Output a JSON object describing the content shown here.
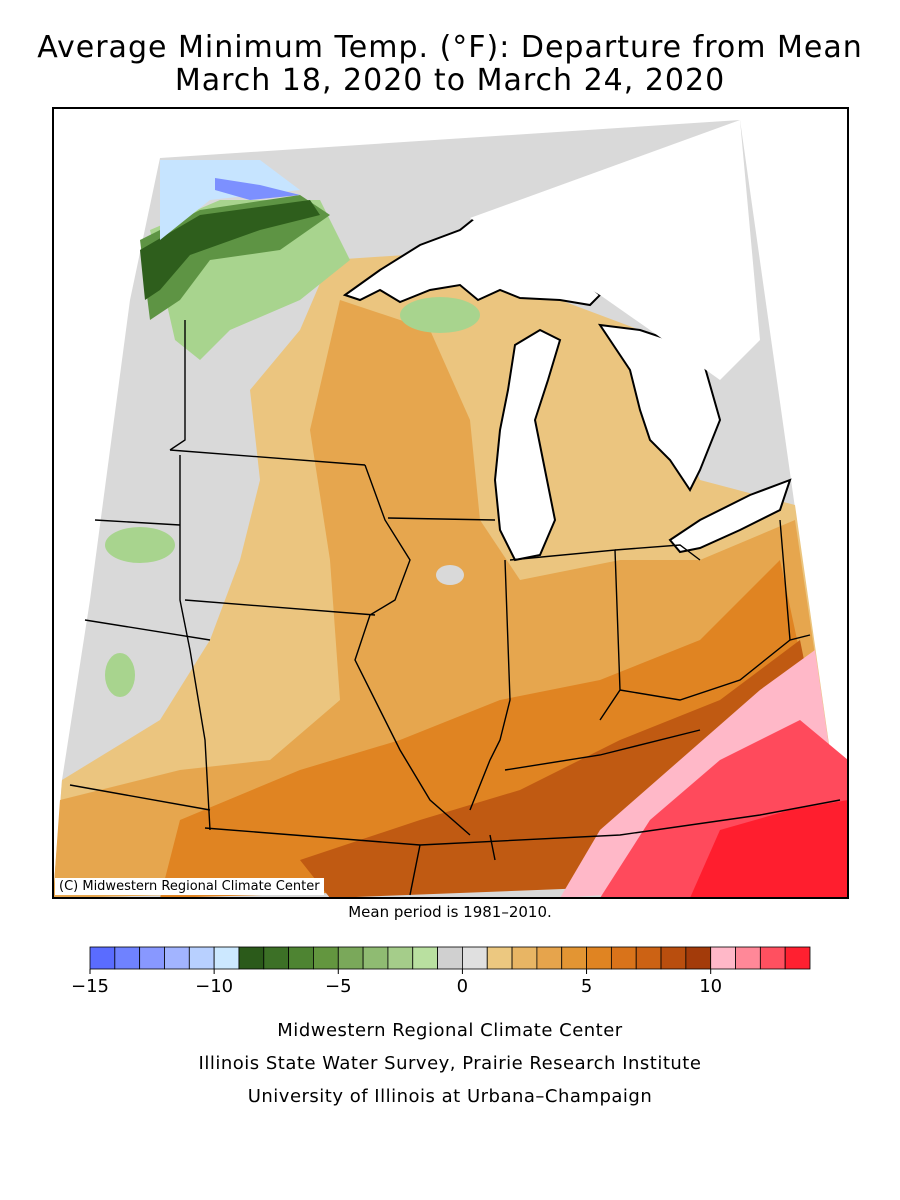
{
  "title_line1": "Average Minimum Temp. (°F): Departure from Mean",
  "title_line2": "March 18, 2020 to March 24, 2020",
  "map_credit": "(C) Midwestern Regional Climate Center",
  "mean_period": "Mean period is 1981–2010.",
  "legend": {
    "min": -15,
    "max": 13,
    "step": 1,
    "colors": [
      "#5a6cff",
      "#6f82ff",
      "#8898ff",
      "#a2b4ff",
      "#b8d0ff",
      "#cce8ff",
      "#2b5a1a",
      "#3c7026",
      "#4e8432",
      "#63963f",
      "#7aa85a",
      "#8fbb72",
      "#a5cd8a",
      "#b9e0a0",
      "#d0d0d0",
      "#e0e0e0",
      "#ecc880",
      "#e8b564",
      "#e6a44c",
      "#e39533",
      "#e08422",
      "#d9731a",
      "#cc6214",
      "#b94e0e",
      "#a33b0a",
      "#ffb8c8",
      "#ff8898",
      "#ff5060",
      "#ff2030"
    ],
    "tick_labels": [
      "−15",
      "−10",
      "−5",
      "0",
      "5",
      "10"
    ],
    "tick_values": [
      -15,
      -10,
      -5,
      0,
      5,
      10
    ]
  },
  "footer": {
    "line1": "Midwestern Regional Climate Center",
    "line2": "Illinois State Water Survey, Prairie Research Institute",
    "line3": "University of Illinois at Urbana–Champaign"
  }
}
